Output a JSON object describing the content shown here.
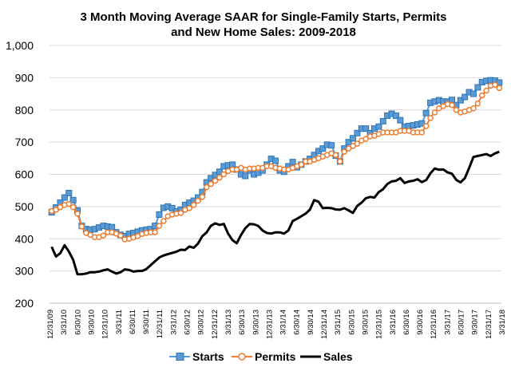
{
  "chart_data": {
    "type": "line",
    "title_lines": [
      "3 Month Moving Average SAAR for Single-Family Starts, Permits",
      "and New Home Sales: 2009-2018"
    ],
    "xlabel": "",
    "ylabel": "",
    "ylim": [
      200,
      1000
    ],
    "y_ticks": [
      200,
      300,
      400,
      500,
      600,
      700,
      800,
      900,
      1000
    ],
    "y_tick_labels": [
      "200",
      "300",
      "400",
      "500",
      "600",
      "700",
      "800",
      "900",
      "1,000"
    ],
    "x_tick_labels": [
      "12/31/09",
      "3/31/10",
      "6/30/10",
      "9/30/10",
      "12/31/10",
      "3/31/11",
      "6/30/11",
      "9/30/11",
      "12/31/11",
      "3/31/12",
      "6/30/12",
      "9/30/12",
      "12/31/12",
      "3/31/13",
      "6/30/13",
      "9/30/13",
      "12/31/13",
      "3/31/14",
      "6/30/14",
      "9/30/14",
      "12/31/14",
      "3/31/15",
      "6/30/15",
      "9/30/15",
      "12/31/15",
      "3/31/16",
      "6/30/16",
      "9/30/16",
      "12/31/16",
      "3/31/17",
      "6/30/17",
      "9/30/17",
      "12/31/17",
      "3/31/18"
    ],
    "grid": true,
    "legend_position": "bottom",
    "series": [
      {
        "name": "Starts",
        "color": "#5b9bd5",
        "marker": "square",
        "values": [
          482,
          497,
          512,
          528,
          542,
          520,
          488,
          440,
          430,
          428,
          430,
          435,
          440,
          438,
          436,
          420,
          412,
          408,
          415,
          418,
          422,
          426,
          428,
          430,
          440,
          475,
          496,
          500,
          495,
          485,
          490,
          505,
          512,
          518,
          528,
          545,
          575,
          588,
          598,
          608,
          625,
          628,
          630,
          615,
          600,
          595,
          612,
          600,
          605,
          612,
          630,
          648,
          642,
          612,
          608,
          625,
          638,
          622,
          630,
          640,
          648,
          660,
          672,
          680,
          692,
          690,
          658,
          640,
          680,
          700,
          712,
          728,
          742,
          742,
          728,
          742,
          748,
          765,
          782,
          788,
          782,
          768,
          748,
          750,
          752,
          755,
          758,
          790,
          822,
          826,
          830,
          826,
          826,
          831,
          815,
          830,
          840,
          855,
          850,
          870,
          886,
          890,
          892,
          891,
          885
        ]
      },
      {
        "name": "Permits",
        "color": "#ed7d31",
        "marker": "circle",
        "values": [
          486,
          490,
          498,
          505,
          508,
          498,
          478,
          438,
          418,
          412,
          405,
          405,
          410,
          420,
          420,
          416,
          410,
          398,
          400,
          404,
          408,
          415,
          418,
          420,
          420,
          440,
          455,
          470,
          475,
          478,
          480,
          490,
          495,
          505,
          518,
          530,
          560,
          570,
          580,
          590,
          600,
          610,
          615,
          615,
          620,
          615,
          618,
          618,
          620,
          620,
          625,
          625,
          620,
          618,
          615,
          615,
          620,
          625,
          630,
          640,
          640,
          645,
          650,
          655,
          660,
          665,
          660,
          640,
          670,
          680,
          688,
          695,
          705,
          710,
          718,
          720,
          725,
          730,
          730,
          730,
          730,
          735,
          735,
          735,
          730,
          730,
          730,
          750,
          775,
          792,
          805,
          812,
          818,
          815,
          800,
          792,
          795,
          800,
          805,
          820,
          845,
          860,
          875,
          878,
          868
        ]
      },
      {
        "name": "Sales",
        "color": "#000000",
        "marker": "none",
        "values": [
          375,
          345,
          355,
          380,
          360,
          335,
          290,
          290,
          292,
          296,
          296,
          298,
          302,
          305,
          298,
          292,
          296,
          305,
          303,
          298,
          300,
          300,
          306,
          318,
          330,
          342,
          348,
          352,
          356,
          360,
          366,
          365,
          376,
          372,
          385,
          408,
          420,
          440,
          448,
          443,
          446,
          416,
          396,
          386,
          412,
          433,
          446,
          445,
          440,
          426,
          418,
          416,
          420,
          420,
          416,
          426,
          455,
          462,
          470,
          478,
          490,
          520,
          515,
          495,
          496,
          495,
          491,
          490,
          495,
          488,
          480,
          502,
          512,
          526,
          530,
          528,
          545,
          554,
          570,
          578,
          580,
          588,
          573,
          578,
          580,
          585,
          576,
          582,
          603,
          618,
          614,
          615,
          606,
          602,
          583,
          575,
          588,
          620,
          654,
          657,
          660,
          663,
          657,
          665,
          670
        ]
      }
    ]
  }
}
